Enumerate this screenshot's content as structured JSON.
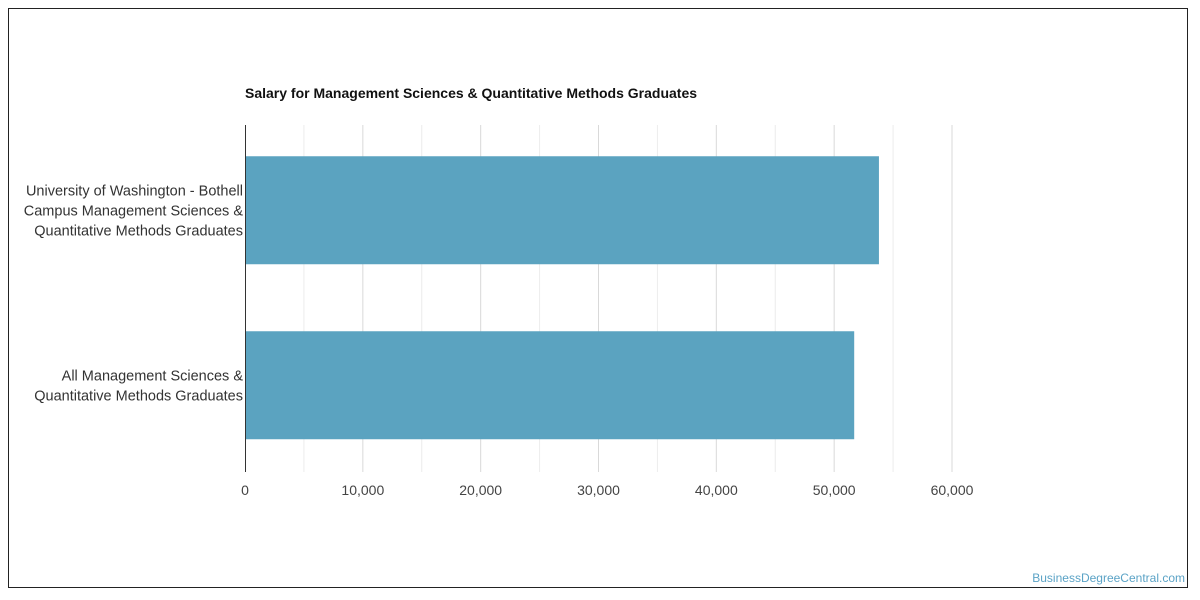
{
  "chart_data": {
    "type": "bar",
    "orientation": "horizontal",
    "title": "Salary for Management Sciences & Quantitative Methods Graduates",
    "categories": [
      [
        "University of Washington - Bothell",
        "Campus Management Sciences &",
        "Quantitative Methods Graduates"
      ],
      [
        "All Management Sciences &",
        "Quantitative Methods Graduates"
      ]
    ],
    "values": [
      53800,
      51700
    ],
    "xlim": [
      0,
      60000
    ],
    "ticks": [
      0,
      10000,
      20000,
      30000,
      40000,
      50000,
      60000
    ],
    "tick_labels": [
      "0",
      "10,000",
      "20,000",
      "30,000",
      "40,000",
      "50,000",
      "60,000"
    ],
    "grid": true,
    "legend": "none",
    "bar_color": "#5ba3c0",
    "grid_color": "#d9d9d9",
    "axis_color": "#333333"
  },
  "watermark": "BusinessDegreeCentral.com"
}
